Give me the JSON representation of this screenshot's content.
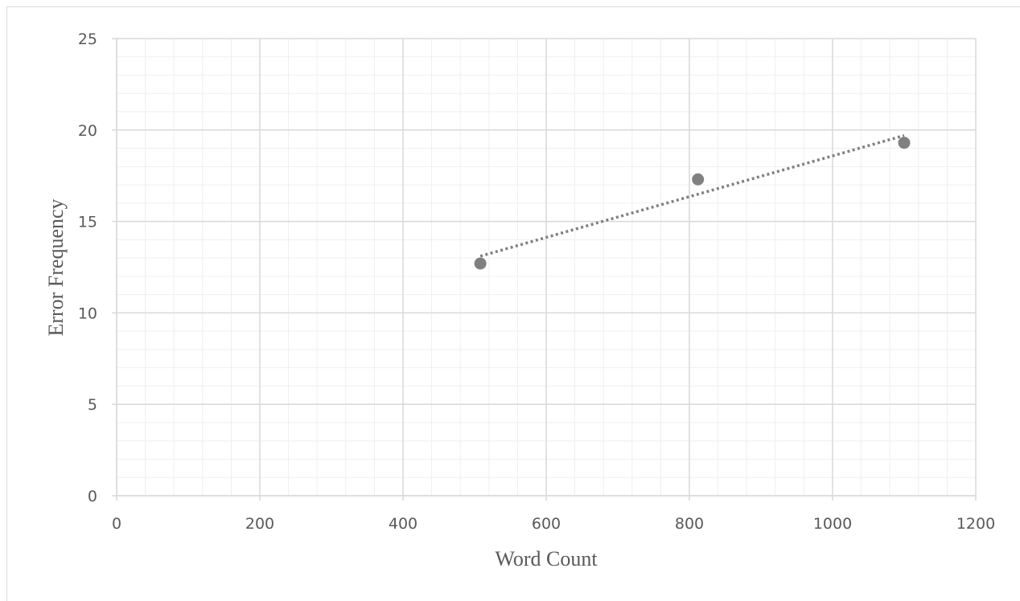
{
  "chart_data": {
    "type": "scatter",
    "title": "",
    "xlabel": "Word Count",
    "ylabel": "Error Frequency",
    "xlim": [
      0,
      1200
    ],
    "ylim": [
      0,
      25
    ],
    "x_ticks": [
      0,
      200,
      400,
      600,
      800,
      1000,
      1200
    ],
    "y_ticks": [
      0,
      5,
      10,
      15,
      20,
      25
    ],
    "x_minor_step": 40,
    "y_minor_step": 1,
    "grid": true,
    "legend": "none",
    "series": [
      {
        "points": [
          {
            "x": 508,
            "y": 12.7
          },
          {
            "x": 812,
            "y": 17.3
          },
          {
            "x": 1100,
            "y": 19.3
          }
        ],
        "marker_color": "#808080"
      }
    ],
    "trendline": {
      "type": "linear",
      "style": "dotted",
      "color": "#808080",
      "x_range": [
        508,
        1100
      ],
      "points": [
        {
          "x": 508,
          "y": 13.1
        },
        {
          "x": 1100,
          "y": 19.7
        }
      ]
    },
    "colors": {
      "major_grid": "#d9d9d9",
      "minor_grid": "#efefef",
      "text": "#595959"
    }
  }
}
